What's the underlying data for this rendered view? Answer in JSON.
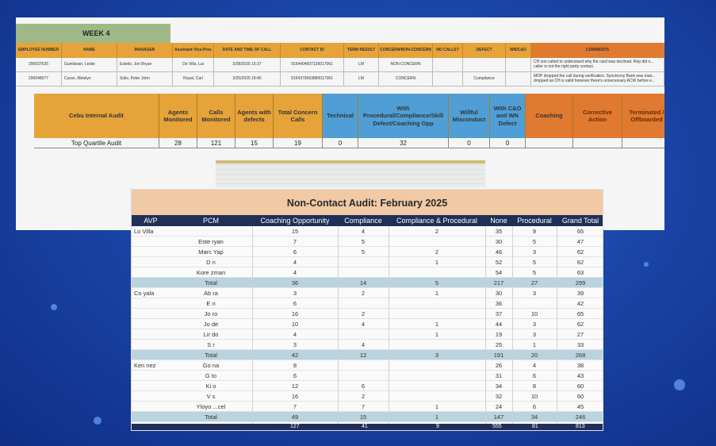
{
  "top_sheet": {
    "week_label": "WEEK 4",
    "headers": [
      "EMPLOYEE NUMBER",
      "NAME",
      "MANAGER",
      "Assistant Vice-Pres",
      "DATE AND TIME OF CALL",
      "CONTACT ID",
      "TERM RESULT",
      "CONCERN/NON-CONCERN",
      "NO CALLS?",
      "DEFECT",
      "WN/C&O",
      "COMMENTS"
    ],
    "rows": [
      [
        "290037625",
        "Guinitaran, Leslie",
        "Estelio, Jon Bryan",
        "De Villa, Lai",
        "3/28/2025 15:37",
        "9154404507130017061",
        "LM",
        "NON-CONCERN",
        "",
        "",
        "",
        "CH son called to understand why the card was declined. Rep did n... caller is not the right party contact."
      ],
      [
        "290048077",
        "Curan, Melelyn",
        "Solis, Peter John",
        "Royal, Carl",
        "3/25/2025 18:40",
        "9154379663880017061",
        "LM",
        "CONCERN",
        "",
        "Compliance",
        "",
        "MOP dropped the call during verification. Synchrony Bank was man... dropped as CH is valid however there's unnecessary ACW before e..."
      ]
    ],
    "summary": {
      "headers": [
        "Cebu Internal Audit",
        "Agents Monitored",
        "Calls Monitored",
        "Agents with defects",
        "Total Concern Calls",
        "Technical",
        "With Procedural/Compliance/Skill Defect/Coaching Opp",
        "Willful Misconduct",
        "With C&O and WN Defect",
        "Coaching",
        "Corrective Action",
        "Terminated / Offboarded"
      ],
      "row": [
        "Top Quartile Audit",
        "28",
        "121",
        "15",
        "19",
        "0",
        "32",
        "0",
        "0",
        "",
        "",
        ""
      ]
    }
  },
  "audit": {
    "title": "Non-Contact Audit: February 2025",
    "columns": [
      "AVP",
      "PCM",
      "Coaching Opportunity",
      "Compliance",
      "Compliance & Procedural",
      "None",
      "Procedural",
      "Grand Total"
    ],
    "rows": [
      {
        "avp": "Lo Villa",
        "pcm": "",
        "co": "15",
        "comp": "4",
        "cp": "2",
        "none": "35",
        "proc": "9",
        "gt": "65",
        "total": false
      },
      {
        "avp": "",
        "pcm": "Este ryan",
        "co": "7",
        "comp": "5",
        "cp": "",
        "none": "30",
        "proc": "5",
        "gt": "47",
        "total": false
      },
      {
        "avp": "",
        "pcm": "Marc Yap",
        "co": "6",
        "comp": "5",
        "cp": "2",
        "none": "46",
        "proc": "3",
        "gt": "62",
        "total": false
      },
      {
        "avp": "",
        "pcm": "D n",
        "co": "4",
        "comp": "",
        "cp": "1",
        "none": "52",
        "proc": "5",
        "gt": "62",
        "total": false
      },
      {
        "avp": "",
        "pcm": "Kore zman",
        "co": "4",
        "comp": "",
        "cp": "",
        "none": "54",
        "proc": "5",
        "gt": "63",
        "total": false
      },
      {
        "avp": "",
        "pcm": "Total",
        "co": "36",
        "comp": "14",
        "cp": "5",
        "none": "217",
        "proc": "27",
        "gt": "299",
        "total": true
      },
      {
        "avp": "Co yala",
        "pcm": "Ab ra",
        "co": "3",
        "comp": "2",
        "cp": "1",
        "none": "30",
        "proc": "3",
        "gt": "39",
        "total": false
      },
      {
        "avp": "",
        "pcm": "E n",
        "co": "6",
        "comp": "",
        "cp": "",
        "none": "36",
        "proc": "",
        "gt": "42",
        "total": false
      },
      {
        "avp": "",
        "pcm": "Jo ro",
        "co": "16",
        "comp": "2",
        "cp": "",
        "none": "37",
        "proc": "10",
        "gt": "65",
        "total": false
      },
      {
        "avp": "",
        "pcm": "Jo de",
        "co": "10",
        "comp": "4",
        "cp": "1",
        "none": "44",
        "proc": "3",
        "gt": "62",
        "total": false
      },
      {
        "avp": "",
        "pcm": "Lir do",
        "co": "4",
        "comp": "",
        "cp": "1",
        "none": "19",
        "proc": "3",
        "gt": "27",
        "total": false
      },
      {
        "avp": "",
        "pcm": "S r",
        "co": "3",
        "comp": "4",
        "cp": "",
        "none": "25",
        "proc": "1",
        "gt": "33",
        "total": false
      },
      {
        "avp": "",
        "pcm": "Total",
        "co": "42",
        "comp": "12",
        "cp": "3",
        "none": "191",
        "proc": "20",
        "gt": "268",
        "total": true
      },
      {
        "avp": "Ken nez",
        "pcm": "Go na",
        "co": "8",
        "comp": "",
        "cp": "",
        "none": "26",
        "proc": "4",
        "gt": "38",
        "total": false
      },
      {
        "avp": "",
        "pcm": "G to",
        "co": "6",
        "comp": "",
        "cp": "",
        "none": "31",
        "proc": "6",
        "gt": "43",
        "total": false
      },
      {
        "avp": "",
        "pcm": "Ki o",
        "co": "12",
        "comp": "6",
        "cp": "",
        "none": "34",
        "proc": "8",
        "gt": "60",
        "total": false
      },
      {
        "avp": "",
        "pcm": "V s",
        "co": "16",
        "comp": "2",
        "cp": "",
        "none": "32",
        "proc": "10",
        "gt": "60",
        "total": false
      },
      {
        "avp": "",
        "pcm": "Yloyo ...cel",
        "co": "7",
        "comp": "7",
        "cp": "1",
        "none": "24",
        "proc": "6",
        "gt": "45",
        "total": false
      },
      {
        "avp": "",
        "pcm": "Total",
        "co": "49",
        "comp": "15",
        "cp": "1",
        "none": "147",
        "proc": "34",
        "gt": "246",
        "total": true
      }
    ],
    "grand_total": [
      "127",
      "41",
      "9",
      "555",
      "81",
      "813"
    ]
  },
  "colors": {
    "accent_orange": "#e5a33a",
    "accent_blue": "#4f9fd6",
    "navy": "#1f2f57",
    "total_row": "#b9d3df",
    "title_bg": "#f1c9a5"
  }
}
